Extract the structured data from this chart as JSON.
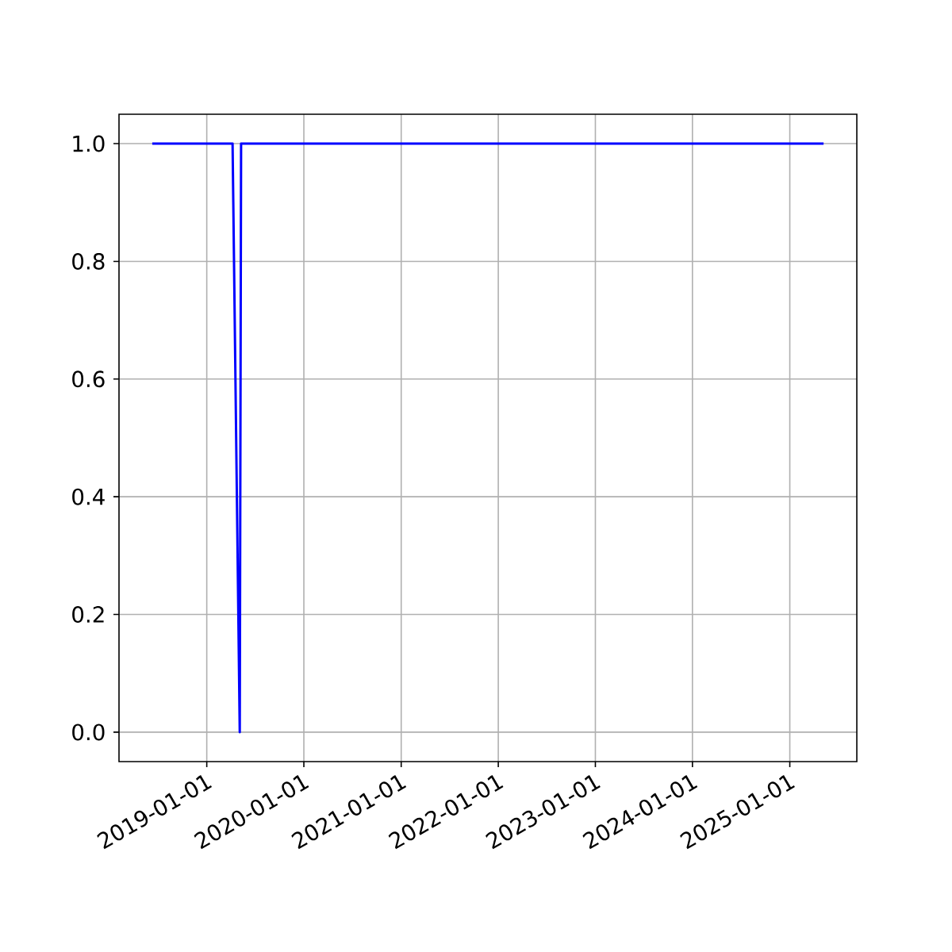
{
  "chart_data": {
    "type": "line",
    "x": [
      "2018-06-10",
      "2019-04-08",
      "2019-05-05",
      "2019-05-10",
      "2025-05-08"
    ],
    "series": [
      {
        "color": "#0000ff",
        "values": [
          1.0,
          1.0,
          0.0,
          1.0,
          1.0
        ]
      }
    ],
    "xlim": [
      "2018-02-05",
      "2025-09-10"
    ],
    "xticks": [
      "2019-01-01",
      "2020-01-01",
      "2021-01-01",
      "2022-01-01",
      "2023-01-01",
      "2024-01-01",
      "2025-01-01"
    ],
    "ylim": [
      -0.05,
      1.05
    ],
    "yticks": [
      {
        "value": 0,
        "label": "0.0"
      },
      {
        "value": 0.2,
        "label": "0.2"
      },
      {
        "value": 0.4,
        "label": "0.4"
      },
      {
        "value": 0.6,
        "label": "0.6"
      },
      {
        "value": 0.8,
        "label": "0.8"
      },
      {
        "value": 1.0,
        "label": "1.0"
      }
    ],
    "grid": true
  }
}
